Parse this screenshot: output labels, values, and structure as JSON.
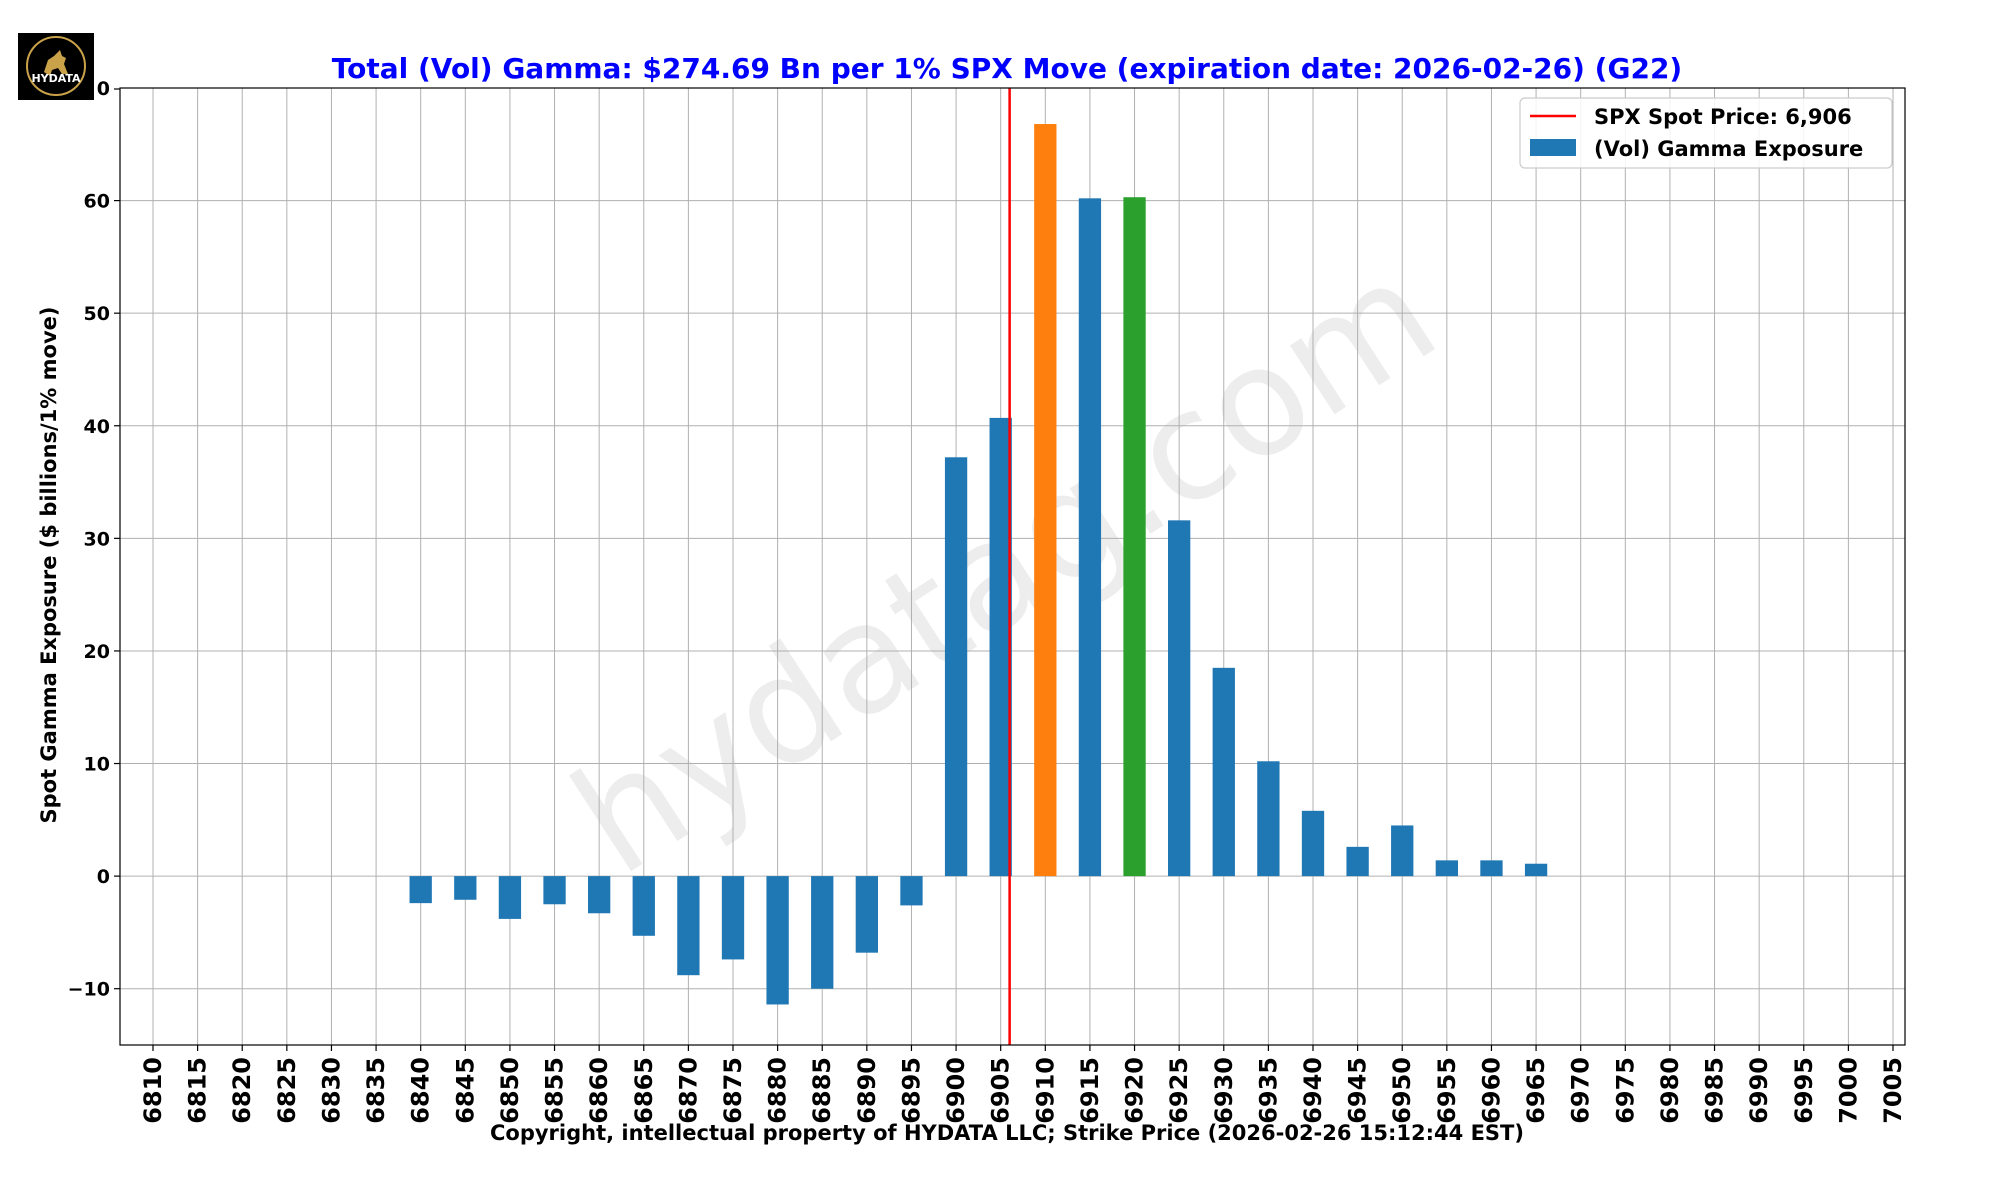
{
  "logo": {
    "text": "HYDATA"
  },
  "watermark": {
    "text": "hydatag.com"
  },
  "colors": {
    "title": "#0000ff",
    "bar_default": "#1f77b4",
    "bar_max": "#ff7f0e",
    "bar_second": "#2ca02c",
    "spot_line": "#ff0000",
    "grid": "#b0b0b0"
  },
  "chart_data": {
    "type": "bar",
    "title": "Total (Vol) Gamma: $274.69 Bn per 1% SPX Move (expiration date: 2026-02-26) (G22)",
    "xlabel": "Copyright, intellectual property of HYDATA LLC; Strike Price (2026-02-26 15:12:44 EST)",
    "ylabel": "Spot Gamma Exposure ($ billions/1% move)",
    "ylim": [
      -15,
      70
    ],
    "yticks": [
      -10,
      0,
      10,
      20,
      30,
      40,
      50,
      60
    ],
    "ytick_labels": [
      "−10",
      "0",
      "10",
      "20",
      "30",
      "40",
      "50",
      "60"
    ],
    "top_tick_label": "0",
    "grid": true,
    "legend_position": "top-right",
    "spot": {
      "label": "SPX Spot Price: 6,906",
      "value": 6906
    },
    "series": [
      {
        "name": "(Vol) Gamma Exposure",
        "categories": [
          6810,
          6815,
          6820,
          6825,
          6830,
          6835,
          6840,
          6845,
          6850,
          6855,
          6860,
          6865,
          6870,
          6875,
          6880,
          6885,
          6890,
          6895,
          6900,
          6905,
          6910,
          6915,
          6920,
          6925,
          6930,
          6935,
          6940,
          6945,
          6950,
          6955,
          6960,
          6965,
          6970,
          6975,
          6980,
          6985,
          6990,
          6995,
          7000,
          7005
        ],
        "values": [
          0,
          0,
          0,
          0,
          0,
          0,
          -2.4,
          -2.1,
          -3.8,
          -2.5,
          -3.3,
          -5.3,
          -8.8,
          -7.4,
          -11.4,
          -10.0,
          -6.8,
          -2.6,
          37.2,
          40.7,
          66.8,
          60.2,
          60.3,
          31.6,
          18.5,
          10.2,
          5.8,
          2.6,
          4.5,
          1.4,
          1.4,
          1.1,
          0,
          0,
          0,
          0,
          0,
          0,
          0,
          0
        ]
      }
    ],
    "highlight": {
      "max_strike": 6910,
      "second_strike": 6920
    }
  }
}
